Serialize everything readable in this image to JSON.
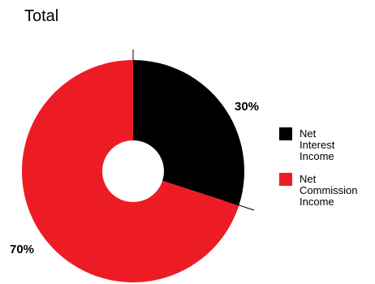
{
  "chart_data": {
    "type": "pie",
    "title": "Total",
    "categories": [
      "Net Interest Income",
      "Net Commission Income"
    ],
    "values": [
      30,
      70
    ],
    "data_labels": [
      "30%",
      "70%"
    ],
    "colors": [
      "#000000",
      "#ed1c24"
    ],
    "legend": {
      "placement": "right",
      "entries": [
        {
          "lines": [
            "Net",
            "Interest",
            "Income"
          ],
          "color": "#000000"
        },
        {
          "lines": [
            "Net",
            "Commission",
            "Income"
          ],
          "color": "#ed1c24"
        }
      ]
    }
  }
}
